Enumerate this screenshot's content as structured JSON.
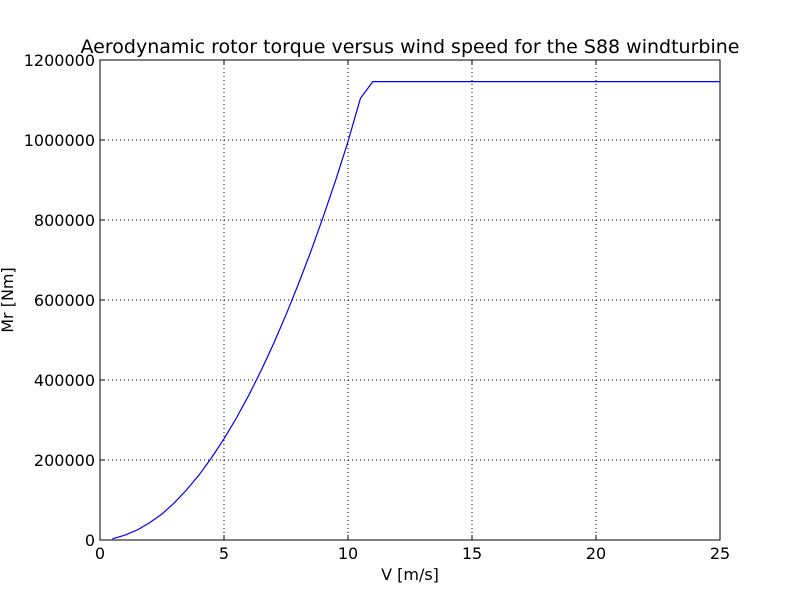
{
  "chart_data": {
    "type": "line",
    "title": "Aerodynamic rotor torque versus wind speed for the S88 windturbine",
    "xlabel": "V [m/s]",
    "ylabel": "Mr [Nm]",
    "xlim": [
      0,
      25
    ],
    "ylim": [
      0,
      1200000
    ],
    "xticks": [
      0,
      5,
      10,
      15,
      20,
      25
    ],
    "yticks": [
      0,
      200000,
      400000,
      600000,
      800000,
      1000000,
      1200000
    ],
    "xtick_labels": [
      "0",
      "5",
      "10",
      "15",
      "20",
      "25"
    ],
    "ytick_labels": [
      "0",
      "200000",
      "400000",
      "600000",
      "800000",
      "1000000",
      "1200000"
    ],
    "grid": true,
    "series": [
      {
        "color": "#0000ff",
        "x": [
          0.5,
          1.0,
          1.5,
          2.0,
          2.5,
          3.0,
          3.5,
          4.0,
          4.5,
          5.0,
          5.5,
          6.0,
          6.5,
          7.0,
          7.5,
          8.0,
          8.5,
          9.0,
          9.5,
          10.0,
          10.5,
          11.0,
          11.5,
          12.0,
          13.0,
          14.0,
          15.0,
          16.0,
          17.0,
          18.0,
          19.0,
          20.0,
          21.0,
          22.0,
          23.0,
          24.0,
          25.0
        ],
        "y": [
          3000,
          12000,
          25000,
          43000,
          65000,
          93000,
          126000,
          163000,
          206000,
          253000,
          305000,
          362000,
          424000,
          491000,
          563000,
          640000,
          721000,
          808000,
          899000,
          996000,
          1104000,
          1146000,
          1146000,
          1146000,
          1146000,
          1146000,
          1146000,
          1146000,
          1146000,
          1146000,
          1146000,
          1146000,
          1146000,
          1146000,
          1146000,
          1146000,
          1146000
        ]
      }
    ]
  }
}
